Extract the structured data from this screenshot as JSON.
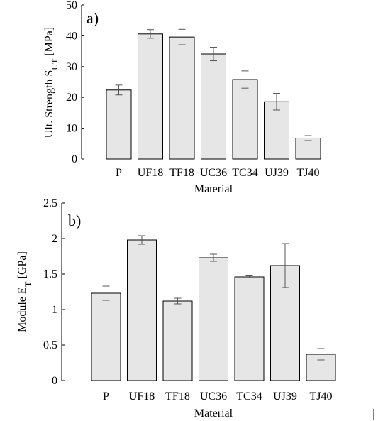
{
  "colors": {
    "bar_fill": "#e6e6e6",
    "bar_stroke": "#000000",
    "errorbar": "#555555",
    "axis": "#000000"
  },
  "chart_data": [
    {
      "type": "bar",
      "panel_label": "a)",
      "categories": [
        "P",
        "UF18",
        "TF18",
        "UC36",
        "TC34",
        "UJ39",
        "TJ40"
      ],
      "values": [
        22.4,
        40.6,
        39.6,
        34.1,
        25.8,
        18.6,
        6.8
      ],
      "errors": [
        1.6,
        1.4,
        2.5,
        2.2,
        2.8,
        2.7,
        0.8
      ],
      "xlabel": "Material",
      "ylabel_main": "Ult. Strength S",
      "ylabel_sub": "UT",
      "ylabel_unit": " [MPa]",
      "ylim": [
        0,
        50
      ],
      "yticks": [
        "0",
        "10",
        "20",
        "30",
        "40",
        "50"
      ],
      "grid": false
    },
    {
      "type": "bar",
      "panel_label": "b)",
      "categories": [
        "P",
        "UF18",
        "TF18",
        "UC36",
        "TC34",
        "UJ39",
        "TJ40"
      ],
      "values": [
        1.23,
        1.98,
        1.12,
        1.73,
        1.46,
        1.62,
        0.37
      ],
      "errors": [
        0.1,
        0.06,
        0.04,
        0.05,
        0.015,
        0.31,
        0.08
      ],
      "xlabel": "Material",
      "ylabel_main": "Module E",
      "ylabel_sub": "T",
      "ylabel_unit": " [GPa]",
      "ylim": [
        0,
        2.5
      ],
      "yticks": [
        "0",
        "0.5",
        "1",
        "1.5",
        "2",
        "2.5"
      ],
      "grid": false
    }
  ]
}
